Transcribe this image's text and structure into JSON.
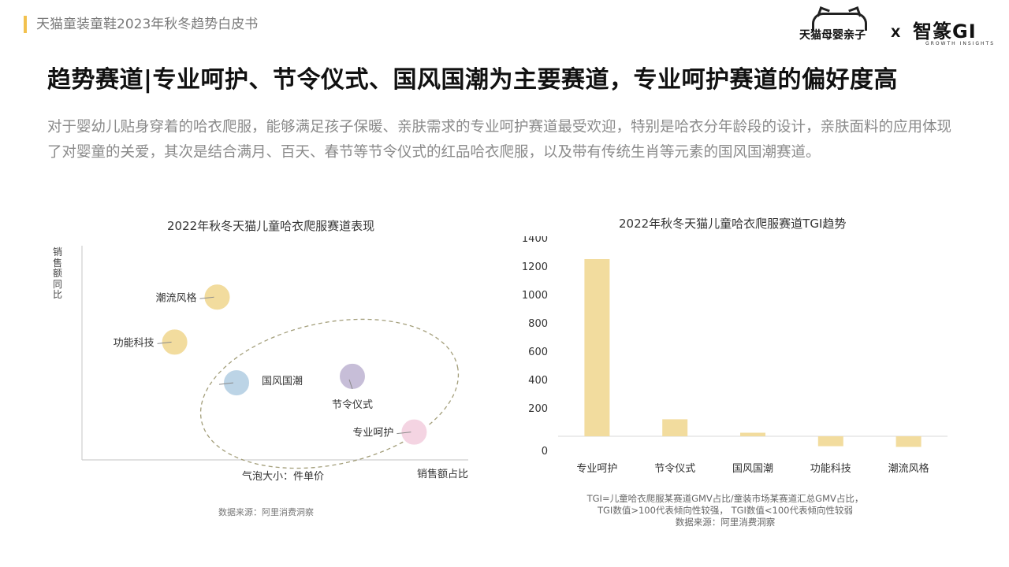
{
  "header": {
    "report_title": "天猫童装童鞋2023年秋冬趋势白皮书",
    "brand_tmall": "天猫母婴亲子",
    "brand_separator": "X",
    "brand_gi": "智篆GI",
    "brand_gi_sub": "GROWTH INSIGHTS",
    "accent_color": "#f2c14e"
  },
  "headline": "趋势赛道|专业呵护、节令仪式、国风国潮为主要赛道，专业呵护赛道的偏好度高",
  "description": "对于婴幼儿贴身穿着的哈衣爬服，能够满足孩子保暖、亲肤需求的专业呵护赛道最受欢迎，特别是哈衣分年龄段的设计，亲肤面料的应用体现了对婴童的关爱，其次是结合满月、百天、春节等节令仪式的红品哈衣爬服，以及带有传统生肖等元素的国风国潮赛道。",
  "chart_data": [
    {
      "type": "scatter",
      "title": "2022年秋冬天猫儿童哈衣爬服赛道表现",
      "xlabel": "销售额占比",
      "ylabel": "销售额同比",
      "size_label": "气泡大小：件单价",
      "source": "数据来源：阿里消费洞察",
      "points": [
        {
          "label": "潮流风格",
          "x": 0.35,
          "y": 0.76,
          "color": "#f2dc9e"
        },
        {
          "label": "功能科技",
          "x": 0.24,
          "y": 0.55,
          "color": "#f2dc9e"
        },
        {
          "label": "国风国潮",
          "x": 0.4,
          "y": 0.36,
          "color": "#bcd4e6"
        },
        {
          "label": "节令仪式",
          "x": 0.7,
          "y": 0.39,
          "color": "#c7bed8"
        },
        {
          "label": "专业呵护",
          "x": 0.86,
          "y": 0.13,
          "color": "#f4d4e2"
        }
      ]
    },
    {
      "type": "bar",
      "title": "2022年秋冬天猫儿童哈衣爬服赛道TGI趋势",
      "categories": [
        "专业呵护",
        "节令仪式",
        "国风国潮",
        "功能科技",
        "潮流风格"
      ],
      "values": [
        1250,
        120,
        25,
        -70,
        -75
      ],
      "ylim": [
        -100,
        1400
      ],
      "yticks": [
        "0",
        "200",
        "400",
        "600",
        "800",
        "1000",
        "1200",
        "1400"
      ],
      "bar_color": "#f2dc9e",
      "note_lines": [
        "TGI=儿童哈衣爬服某赛道GMV占比/童装市场某赛道汇总GMV占比，",
        "TGI数值>100代表倾向性较强， TGI数值<100代表倾向性较弱",
        "数据来源：阿里消费洞察"
      ]
    }
  ]
}
